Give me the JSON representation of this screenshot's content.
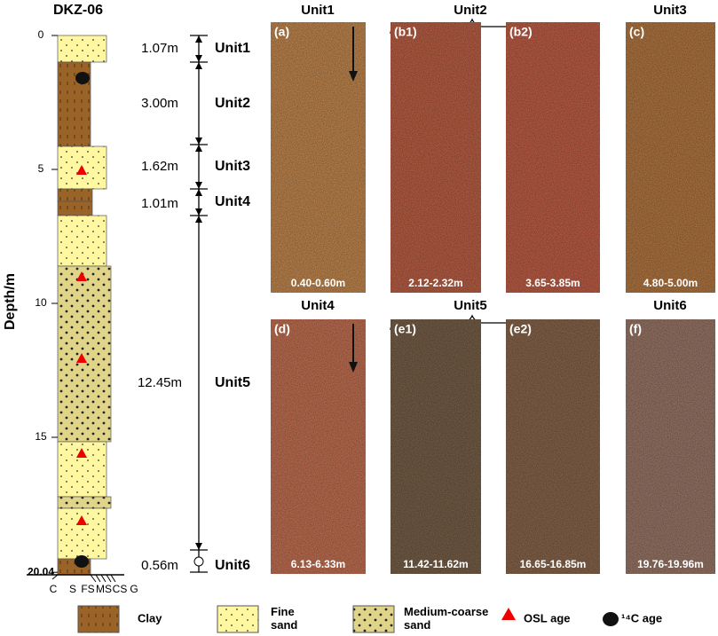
{
  "column": {
    "title": "DKZ-06",
    "axis_label": "Depth/m",
    "depth_ticks": [
      0,
      5,
      10,
      15,
      20.04
    ],
    "grain_size": [
      "C",
      "S",
      "FS",
      "MS",
      "CS",
      "G"
    ]
  },
  "units": [
    {
      "name": "Unit1",
      "thickness": "1.07m"
    },
    {
      "name": "Unit2",
      "thickness": "3.00m"
    },
    {
      "name": "Unit3",
      "thickness": "1.62m"
    },
    {
      "name": "Unit4",
      "thickness": "1.01m"
    },
    {
      "name": "Unit5",
      "thickness": "12.45m"
    },
    {
      "name": "Unit6",
      "thickness": "0.56m"
    }
  ],
  "panel_headers": [
    "Unit1",
    "Unit2",
    "Unit3",
    "Unit4",
    "Unit5",
    "Unit6"
  ],
  "panels": [
    {
      "letter": "(a)",
      "range": "0.40-0.60m"
    },
    {
      "letter": "(b1)",
      "range": "2.12-2.32m"
    },
    {
      "letter": "(b2)",
      "range": "3.65-3.85m"
    },
    {
      "letter": "(c)",
      "range": "4.80-5.00m"
    },
    {
      "letter": "(d)",
      "range": "6.13-6.33m"
    },
    {
      "letter": "(e1)",
      "range": "11.42-11.62m"
    },
    {
      "letter": "(e2)",
      "range": "16.65-16.85m"
    },
    {
      "letter": "(f)",
      "range": "19.76-19.96m"
    }
  ],
  "legend": [
    {
      "lines": [
        "Clay"
      ]
    },
    {
      "lines": [
        "Fine",
        "sand"
      ]
    },
    {
      "lines": [
        "Medium-coarse",
        "sand"
      ]
    },
    {
      "lines": [
        "OSL age"
      ]
    },
    {
      "lines": [
        "¹⁴C age"
      ]
    }
  ]
}
